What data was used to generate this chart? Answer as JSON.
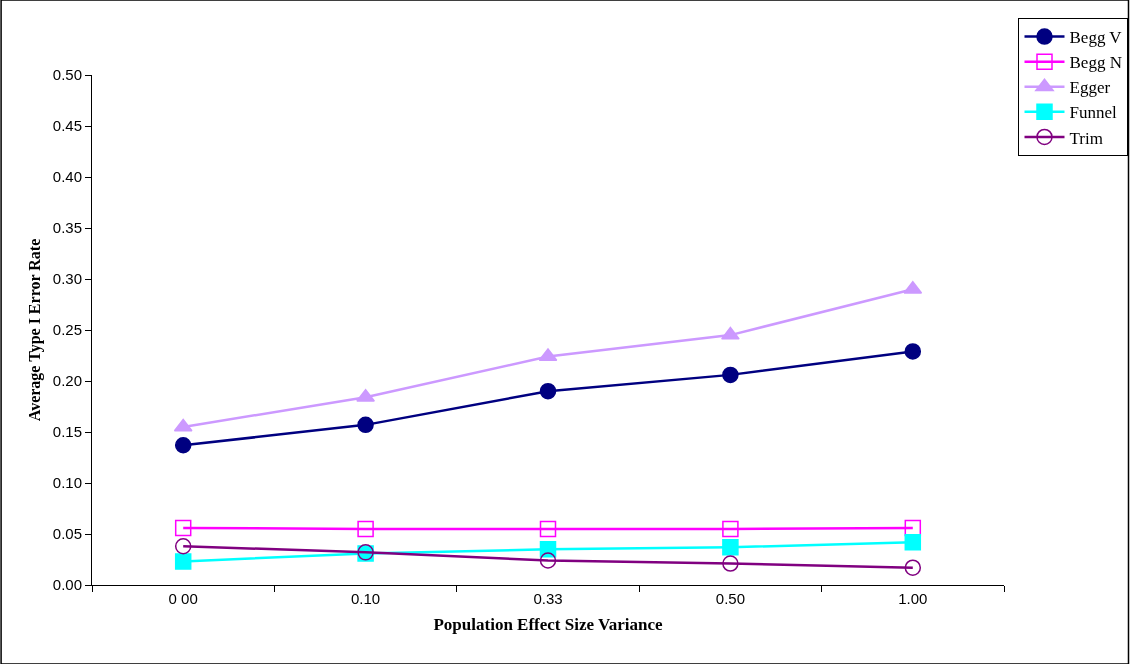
{
  "chart_data": {
    "type": "line",
    "xlabel": "Population Effect Size Variance",
    "ylabel": "Average Type I Error Rate",
    "categories": [
      "0 00",
      "0.10",
      "0.33",
      "0.50",
      "1.00"
    ],
    "series": [
      {
        "name": "Begg V",
        "color": "#000080",
        "marker": "circle",
        "values": [
          0.137,
          0.157,
          0.19,
          0.206,
          0.229
        ]
      },
      {
        "name": "Begg N",
        "color": "#ff00ff",
        "marker": "square-open",
        "values": [
          0.056,
          0.055,
          0.055,
          0.055,
          0.056
        ]
      },
      {
        "name": "Egger",
        "color": "#cc99ff",
        "marker": "triangle",
        "values": [
          0.155,
          0.184,
          0.224,
          0.245,
          0.29
        ]
      },
      {
        "name": "Funnel",
        "color": "#00ffff",
        "marker": "square",
        "values": [
          0.023,
          0.031,
          0.035,
          0.037,
          0.042
        ]
      },
      {
        "name": "Trim",
        "color": "#800080",
        "marker": "circle-open",
        "values": [
          0.038,
          0.032,
          0.024,
          0.021,
          0.017
        ]
      }
    ],
    "ylim": [
      0,
      0.5
    ],
    "yticks": [
      {
        "value": 0,
        "label": "0.00"
      },
      {
        "value": 0.05,
        "label": "0.05"
      },
      {
        "value": 0.1,
        "label": "0.10"
      },
      {
        "value": 0.15,
        "label": "0.15"
      },
      {
        "value": 0.2,
        "label": "0.20"
      },
      {
        "value": 0.25,
        "label": "0.25"
      },
      {
        "value": 0.3,
        "label": "0.30"
      },
      {
        "value": 0.35,
        "label": "0.35"
      },
      {
        "value": 0.4,
        "label": "0.40"
      },
      {
        "value": 0.45,
        "label": "0.45"
      },
      {
        "value": 0.5,
        "label": "0.50"
      }
    ],
    "legend": "top right",
    "line_style": "solid"
  }
}
